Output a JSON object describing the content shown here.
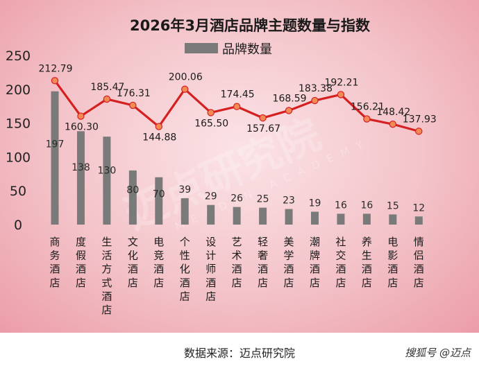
{
  "chart_data": {
    "type": "bar+line",
    "title": "2026年3月酒店品牌主题数量与指数",
    "categories": [
      "商务酒店",
      "度假酒店",
      "生活方式酒店",
      "文化酒店",
      "电竞酒店",
      "个性化酒店",
      "设计师酒店",
      "艺术酒店",
      "轻奢酒店",
      "美学酒店",
      "潮牌酒店",
      "社交酒店",
      "养生酒店",
      "电影酒店",
      "情侣酒店"
    ],
    "series": [
      {
        "name": "品牌数量",
        "type": "bar",
        "values": [
          197,
          138,
          130,
          80,
          70,
          39,
          29,
          26,
          25,
          23,
          19,
          16,
          16,
          15,
          12
        ]
      },
      {
        "type": "line",
        "values": [
          212.79,
          160.3,
          185.47,
          176.31,
          144.88,
          200.06,
          165.5,
          174.45,
          157.67,
          168.59,
          183.38,
          192.21,
          156.21,
          148.42,
          137.93
        ]
      }
    ],
    "yticks": [
      "0",
      "50",
      "100",
      "150",
      "200",
      "250"
    ],
    "ylim": [
      0,
      250
    ],
    "legend": {
      "label": "品牌数量",
      "position": "top-center"
    },
    "colors": {
      "bar": "#7a7a7a",
      "line": "#d42020",
      "marker": "#f28a55",
      "marker_edge": "#d42020"
    }
  },
  "watermark": {
    "text": "迈点研究院",
    "sub": "MEADIN ACADEMY"
  },
  "source": "数据来源：迈点研究院",
  "brand": "搜狐号 @迈点"
}
